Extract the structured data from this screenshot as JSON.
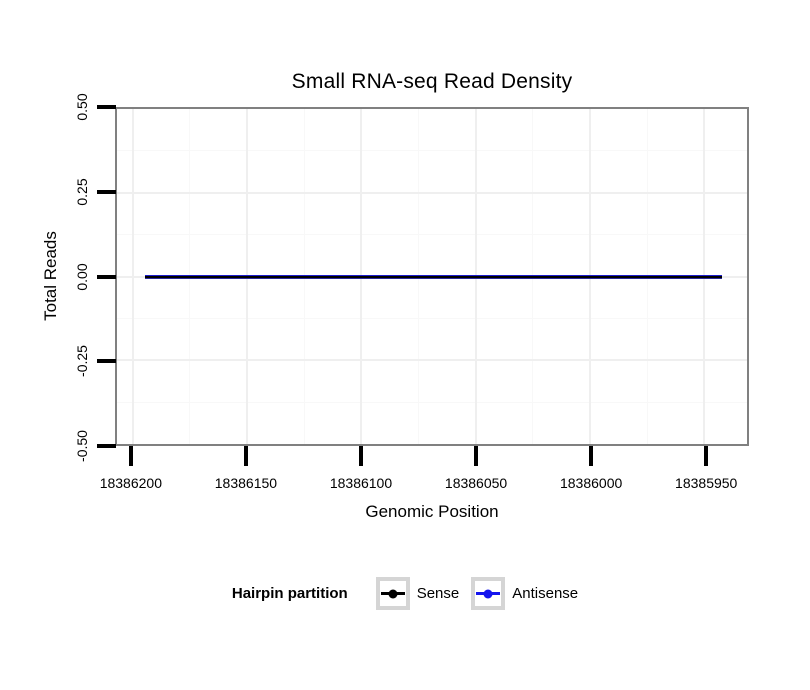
{
  "chart_data": {
    "type": "line",
    "title": "Small RNA-seq Read Density",
    "xlabel": "Genomic Position",
    "ylabel": "Total Reads",
    "x_tick_labels": [
      "18386200",
      "18386150",
      "18386100",
      "18386050",
      "18386000",
      "18385950"
    ],
    "x_tick_values": [
      18386200,
      18386150,
      18386100,
      18386050,
      18386000,
      18385950
    ],
    "y_tick_labels": [
      "0.50",
      "0.25",
      "0.00",
      "-0.25",
      "-0.50"
    ],
    "y_tick_values": [
      0.5,
      0.25,
      0.0,
      -0.25,
      -0.5
    ],
    "x_axis_reversed": true,
    "xlim": [
      18386207,
      18385941
    ],
    "ylim": [
      -0.5,
      0.5
    ],
    "grid": "major and minor gridlines, very faint gray on white panel",
    "legend_position": "bottom",
    "legend_title": "Hairpin partition",
    "series": [
      {
        "name": "Sense",
        "color": "#000000",
        "x": [
          18386193,
          18385952
        ],
        "y": [
          0,
          0
        ]
      },
      {
        "name": "Antisense",
        "color": "#1414ee",
        "x": [
          18386193,
          18385952
        ],
        "y": [
          0,
          0
        ]
      }
    ]
  },
  "colors": {
    "background": "#ffffff",
    "panel_border": "#808080",
    "tick_mark": "#000000",
    "grid_major": "#efefef",
    "grid_minor": "#f8f8f8",
    "legend_key_border": "#d5d5d5",
    "plot_line_edge": "#2b2b8a"
  }
}
